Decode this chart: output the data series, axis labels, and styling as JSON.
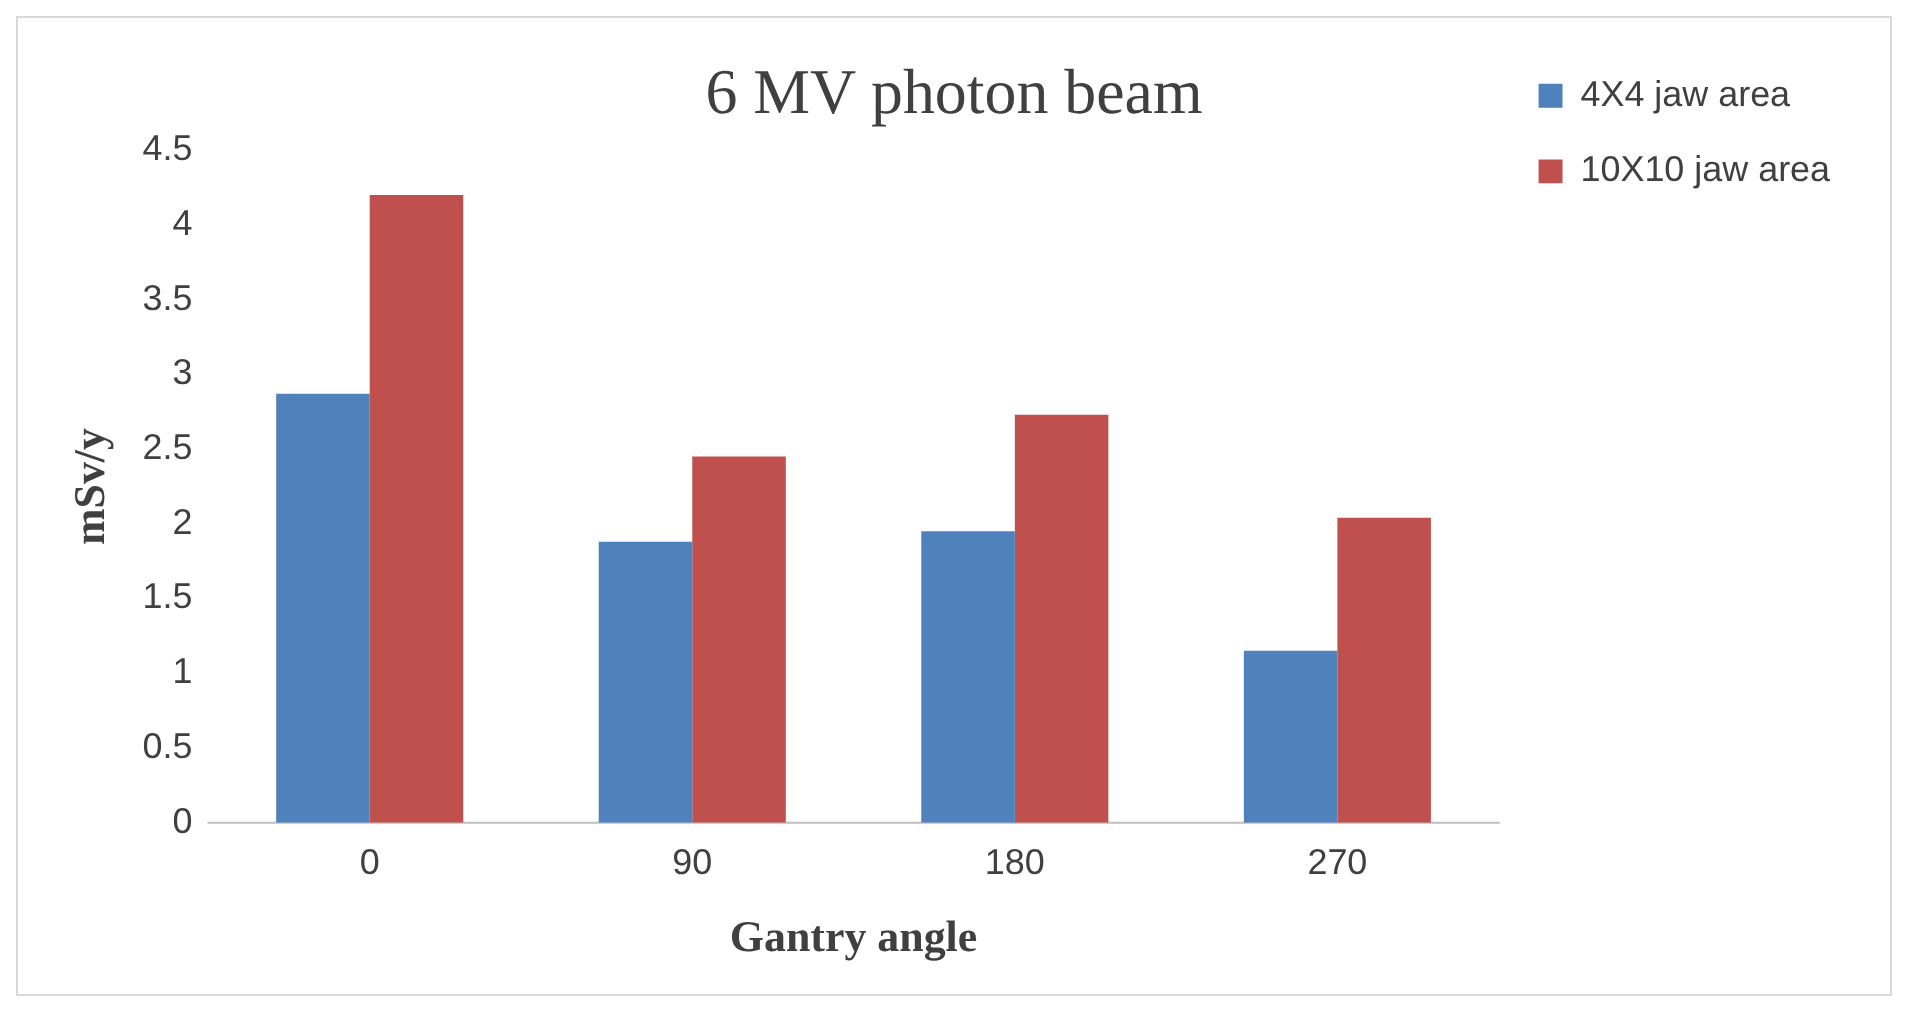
{
  "chart_data": {
    "type": "bar",
    "title": "6 MV photon beam",
    "xlabel": "Gantry angle",
    "ylabel": "mSv/y",
    "categories": [
      "0",
      "90",
      "180",
      "270"
    ],
    "series": [
      {
        "name": "4X4 jaw area",
        "color": "#4f81bd",
        "values": [
          2.87,
          1.88,
          1.95,
          1.15
        ]
      },
      {
        "name": "10X10 jaw area",
        "color": "#c0504d",
        "values": [
          4.2,
          2.45,
          2.73,
          2.04
        ]
      }
    ],
    "ylim": [
      0,
      4.5
    ],
    "yticks": [
      0,
      0.5,
      1,
      1.5,
      2,
      2.5,
      3,
      3.5,
      4,
      4.5
    ],
    "grid": false,
    "legend": "top right"
  }
}
